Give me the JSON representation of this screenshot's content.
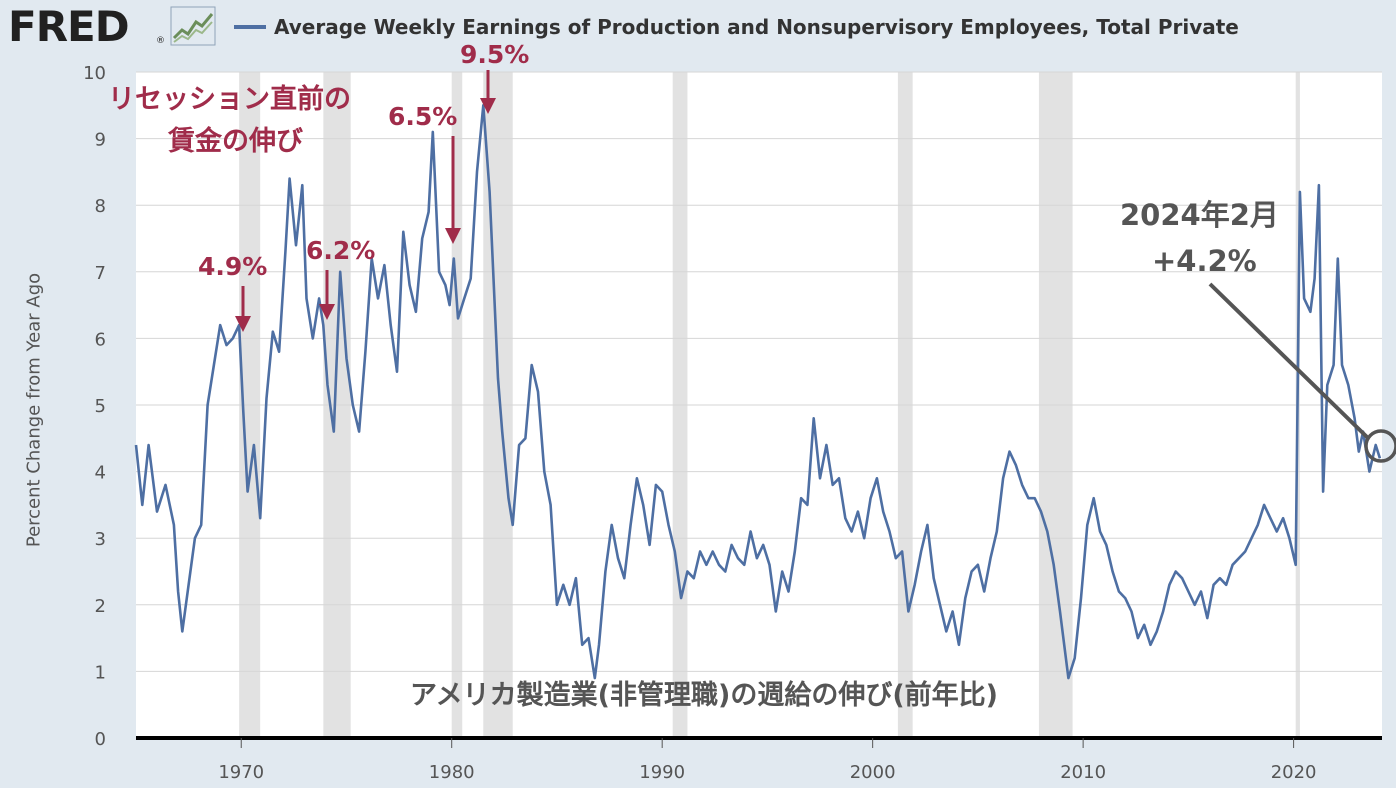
{
  "header": {
    "logo_text": "FRED",
    "logo_reg": "®",
    "logo_icon": "line-graph-icon",
    "legend_label": "Average Weekly Earnings of Production and Nonsupervisory Employees, Total Private"
  },
  "colors": {
    "series": "#4e6fa3",
    "annotation_red": "#a02c4a",
    "annotation_gray": "#555555",
    "recession": "#e2e2e2",
    "plot_bg": "#ffffff",
    "page_bg": "#e1e9f0"
  },
  "annotations": {
    "title_line1": "リセッション直前の",
    "title_line2": "賃金の伸び",
    "peak_1970": "4.9%",
    "peak_1973": "6.2%",
    "peak_1979": "6.5%",
    "peak_1981": "9.5%",
    "latest_date": "2024年2月",
    "latest_value": "+4.2%",
    "footer_caption": "アメリカ製造業(非管理職)の週給の伸び(前年比)"
  },
  "chart_data": {
    "type": "line",
    "title": "Average Weekly Earnings of Production and Nonsupervisory Employees, Total Private",
    "ylabel": "Percent Change from Year Ago",
    "xlabel": "",
    "xlim": [
      1965,
      2024.2
    ],
    "ylim": [
      0,
      10
    ],
    "x_ticks": [
      1970,
      1980,
      1990,
      2000,
      2010,
      2020
    ],
    "y_ticks": [
      0,
      1,
      2,
      3,
      4,
      5,
      6,
      7,
      8,
      9,
      10
    ],
    "grid": "horizontal",
    "legend": "top",
    "recessions": [
      [
        1969.9,
        1970.9
      ],
      [
        1973.9,
        1975.2
      ],
      [
        1980.0,
        1980.5
      ],
      [
        1981.5,
        1982.9
      ],
      [
        1990.5,
        1991.2
      ],
      [
        2001.2,
        2001.9
      ],
      [
        2007.9,
        2009.5
      ],
      [
        2020.1,
        2020.3
      ]
    ],
    "series": [
      {
        "name": "Average Weekly Earnings of Production and Nonsupervisory Employees, Total Private",
        "points": [
          [
            1965.0,
            4.4
          ],
          [
            1965.3,
            3.5
          ],
          [
            1965.6,
            4.4
          ],
          [
            1966.0,
            3.4
          ],
          [
            1966.4,
            3.8
          ],
          [
            1966.8,
            3.2
          ],
          [
            1967.0,
            2.2
          ],
          [
            1967.2,
            1.6
          ],
          [
            1967.5,
            2.3
          ],
          [
            1967.8,
            3.0
          ],
          [
            1968.1,
            3.2
          ],
          [
            1968.4,
            5.0
          ],
          [
            1968.7,
            5.6
          ],
          [
            1969.0,
            6.2
          ],
          [
            1969.3,
            5.9
          ],
          [
            1969.6,
            6.0
          ],
          [
            1969.9,
            6.2
          ],
          [
            1970.1,
            4.9
          ],
          [
            1970.3,
            3.7
          ],
          [
            1970.6,
            4.4
          ],
          [
            1970.9,
            3.3
          ],
          [
            1971.2,
            5.1
          ],
          [
            1971.5,
            6.1
          ],
          [
            1971.8,
            5.8
          ],
          [
            1972.1,
            7.3
          ],
          [
            1972.3,
            8.4
          ],
          [
            1972.6,
            7.4
          ],
          [
            1972.9,
            8.3
          ],
          [
            1973.1,
            6.6
          ],
          [
            1973.4,
            6.0
          ],
          [
            1973.7,
            6.6
          ],
          [
            1973.9,
            6.2
          ],
          [
            1974.1,
            5.3
          ],
          [
            1974.4,
            4.6
          ],
          [
            1974.7,
            7.0
          ],
          [
            1975.0,
            5.7
          ],
          [
            1975.3,
            5.0
          ],
          [
            1975.6,
            4.6
          ],
          [
            1975.9,
            5.8
          ],
          [
            1976.2,
            7.2
          ],
          [
            1976.5,
            6.6
          ],
          [
            1976.8,
            7.1
          ],
          [
            1977.1,
            6.2
          ],
          [
            1977.4,
            5.5
          ],
          [
            1977.7,
            7.6
          ],
          [
            1978.0,
            6.8
          ],
          [
            1978.3,
            6.4
          ],
          [
            1978.6,
            7.5
          ],
          [
            1978.9,
            7.9
          ],
          [
            1979.1,
            9.1
          ],
          [
            1979.4,
            7.0
          ],
          [
            1979.7,
            6.8
          ],
          [
            1979.9,
            6.5
          ],
          [
            1980.1,
            7.2
          ],
          [
            1980.3,
            6.3
          ],
          [
            1980.6,
            6.6
          ],
          [
            1980.9,
            6.9
          ],
          [
            1981.2,
            8.5
          ],
          [
            1981.5,
            9.5
          ],
          [
            1981.8,
            8.2
          ],
          [
            1982.0,
            6.8
          ],
          [
            1982.2,
            5.4
          ],
          [
            1982.4,
            4.6
          ],
          [
            1982.7,
            3.6
          ],
          [
            1982.9,
            3.2
          ],
          [
            1983.2,
            4.4
          ],
          [
            1983.5,
            4.5
          ],
          [
            1983.8,
            5.6
          ],
          [
            1984.1,
            5.2
          ],
          [
            1984.4,
            4.0
          ],
          [
            1984.7,
            3.5
          ],
          [
            1985.0,
            2.0
          ],
          [
            1985.3,
            2.3
          ],
          [
            1985.6,
            2.0
          ],
          [
            1985.9,
            2.4
          ],
          [
            1986.2,
            1.4
          ],
          [
            1986.5,
            1.5
          ],
          [
            1986.8,
            0.9
          ],
          [
            1987.0,
            1.4
          ],
          [
            1987.3,
            2.5
          ],
          [
            1987.6,
            3.2
          ],
          [
            1987.9,
            2.7
          ],
          [
            1988.2,
            2.4
          ],
          [
            1988.5,
            3.2
          ],
          [
            1988.8,
            3.9
          ],
          [
            1989.1,
            3.5
          ],
          [
            1989.4,
            2.9
          ],
          [
            1989.7,
            3.8
          ],
          [
            1990.0,
            3.7
          ],
          [
            1990.3,
            3.2
          ],
          [
            1990.6,
            2.8
          ],
          [
            1990.9,
            2.1
          ],
          [
            1991.2,
            2.5
          ],
          [
            1991.5,
            2.4
          ],
          [
            1991.8,
            2.8
          ],
          [
            1992.1,
            2.6
          ],
          [
            1992.4,
            2.8
          ],
          [
            1992.7,
            2.6
          ],
          [
            1993.0,
            2.5
          ],
          [
            1993.3,
            2.9
          ],
          [
            1993.6,
            2.7
          ],
          [
            1993.9,
            2.6
          ],
          [
            1994.2,
            3.1
          ],
          [
            1994.5,
            2.7
          ],
          [
            1994.8,
            2.9
          ],
          [
            1995.1,
            2.6
          ],
          [
            1995.4,
            1.9
          ],
          [
            1995.7,
            2.5
          ],
          [
            1996.0,
            2.2
          ],
          [
            1996.3,
            2.8
          ],
          [
            1996.6,
            3.6
          ],
          [
            1996.9,
            3.5
          ],
          [
            1997.2,
            4.8
          ],
          [
            1997.5,
            3.9
          ],
          [
            1997.8,
            4.4
          ],
          [
            1998.1,
            3.8
          ],
          [
            1998.4,
            3.9
          ],
          [
            1998.7,
            3.3
          ],
          [
            1999.0,
            3.1
          ],
          [
            1999.3,
            3.4
          ],
          [
            1999.6,
            3.0
          ],
          [
            1999.9,
            3.6
          ],
          [
            2000.2,
            3.9
          ],
          [
            2000.5,
            3.4
          ],
          [
            2000.8,
            3.1
          ],
          [
            2001.1,
            2.7
          ],
          [
            2001.4,
            2.8
          ],
          [
            2001.7,
            1.9
          ],
          [
            2002.0,
            2.3
          ],
          [
            2002.3,
            2.8
          ],
          [
            2002.6,
            3.2
          ],
          [
            2002.9,
            2.4
          ],
          [
            2003.2,
            2.0
          ],
          [
            2003.5,
            1.6
          ],
          [
            2003.8,
            1.9
          ],
          [
            2004.1,
            1.4
          ],
          [
            2004.4,
            2.1
          ],
          [
            2004.7,
            2.5
          ],
          [
            2005.0,
            2.6
          ],
          [
            2005.3,
            2.2
          ],
          [
            2005.6,
            2.7
          ],
          [
            2005.9,
            3.1
          ],
          [
            2006.2,
            3.9
          ],
          [
            2006.5,
            4.3
          ],
          [
            2006.8,
            4.1
          ],
          [
            2007.1,
            3.8
          ],
          [
            2007.4,
            3.6
          ],
          [
            2007.7,
            3.6
          ],
          [
            2008.0,
            3.4
          ],
          [
            2008.3,
            3.1
          ],
          [
            2008.6,
            2.6
          ],
          [
            2008.9,
            1.9
          ],
          [
            2009.1,
            1.4
          ],
          [
            2009.3,
            0.9
          ],
          [
            2009.6,
            1.2
          ],
          [
            2009.9,
            2.1
          ],
          [
            2010.2,
            3.2
          ],
          [
            2010.5,
            3.6
          ],
          [
            2010.8,
            3.1
          ],
          [
            2011.1,
            2.9
          ],
          [
            2011.4,
            2.5
          ],
          [
            2011.7,
            2.2
          ],
          [
            2012.0,
            2.1
          ],
          [
            2012.3,
            1.9
          ],
          [
            2012.6,
            1.5
          ],
          [
            2012.9,
            1.7
          ],
          [
            2013.2,
            1.4
          ],
          [
            2013.5,
            1.6
          ],
          [
            2013.8,
            1.9
          ],
          [
            2014.1,
            2.3
          ],
          [
            2014.4,
            2.5
          ],
          [
            2014.7,
            2.4
          ],
          [
            2015.0,
            2.2
          ],
          [
            2015.3,
            2.0
          ],
          [
            2015.6,
            2.2
          ],
          [
            2015.9,
            1.8
          ],
          [
            2016.2,
            2.3
          ],
          [
            2016.5,
            2.4
          ],
          [
            2016.8,
            2.3
          ],
          [
            2017.1,
            2.6
          ],
          [
            2017.4,
            2.7
          ],
          [
            2017.7,
            2.8
          ],
          [
            2018.0,
            3.0
          ],
          [
            2018.3,
            3.2
          ],
          [
            2018.6,
            3.5
          ],
          [
            2018.9,
            3.3
          ],
          [
            2019.2,
            3.1
          ],
          [
            2019.5,
            3.3
          ],
          [
            2019.8,
            3.0
          ],
          [
            2020.1,
            2.6
          ],
          [
            2020.3,
            8.2
          ],
          [
            2020.5,
            6.6
          ],
          [
            2020.8,
            6.4
          ],
          [
            2021.0,
            6.9
          ],
          [
            2021.2,
            8.3
          ],
          [
            2021.4,
            3.7
          ],
          [
            2021.6,
            5.3
          ],
          [
            2021.9,
            5.6
          ],
          [
            2022.1,
            7.2
          ],
          [
            2022.3,
            5.6
          ],
          [
            2022.6,
            5.3
          ],
          [
            2022.9,
            4.8
          ],
          [
            2023.1,
            4.3
          ],
          [
            2023.3,
            4.6
          ],
          [
            2023.6,
            4.0
          ],
          [
            2023.9,
            4.4
          ],
          [
            2024.1,
            4.2
          ]
        ]
      }
    ]
  }
}
